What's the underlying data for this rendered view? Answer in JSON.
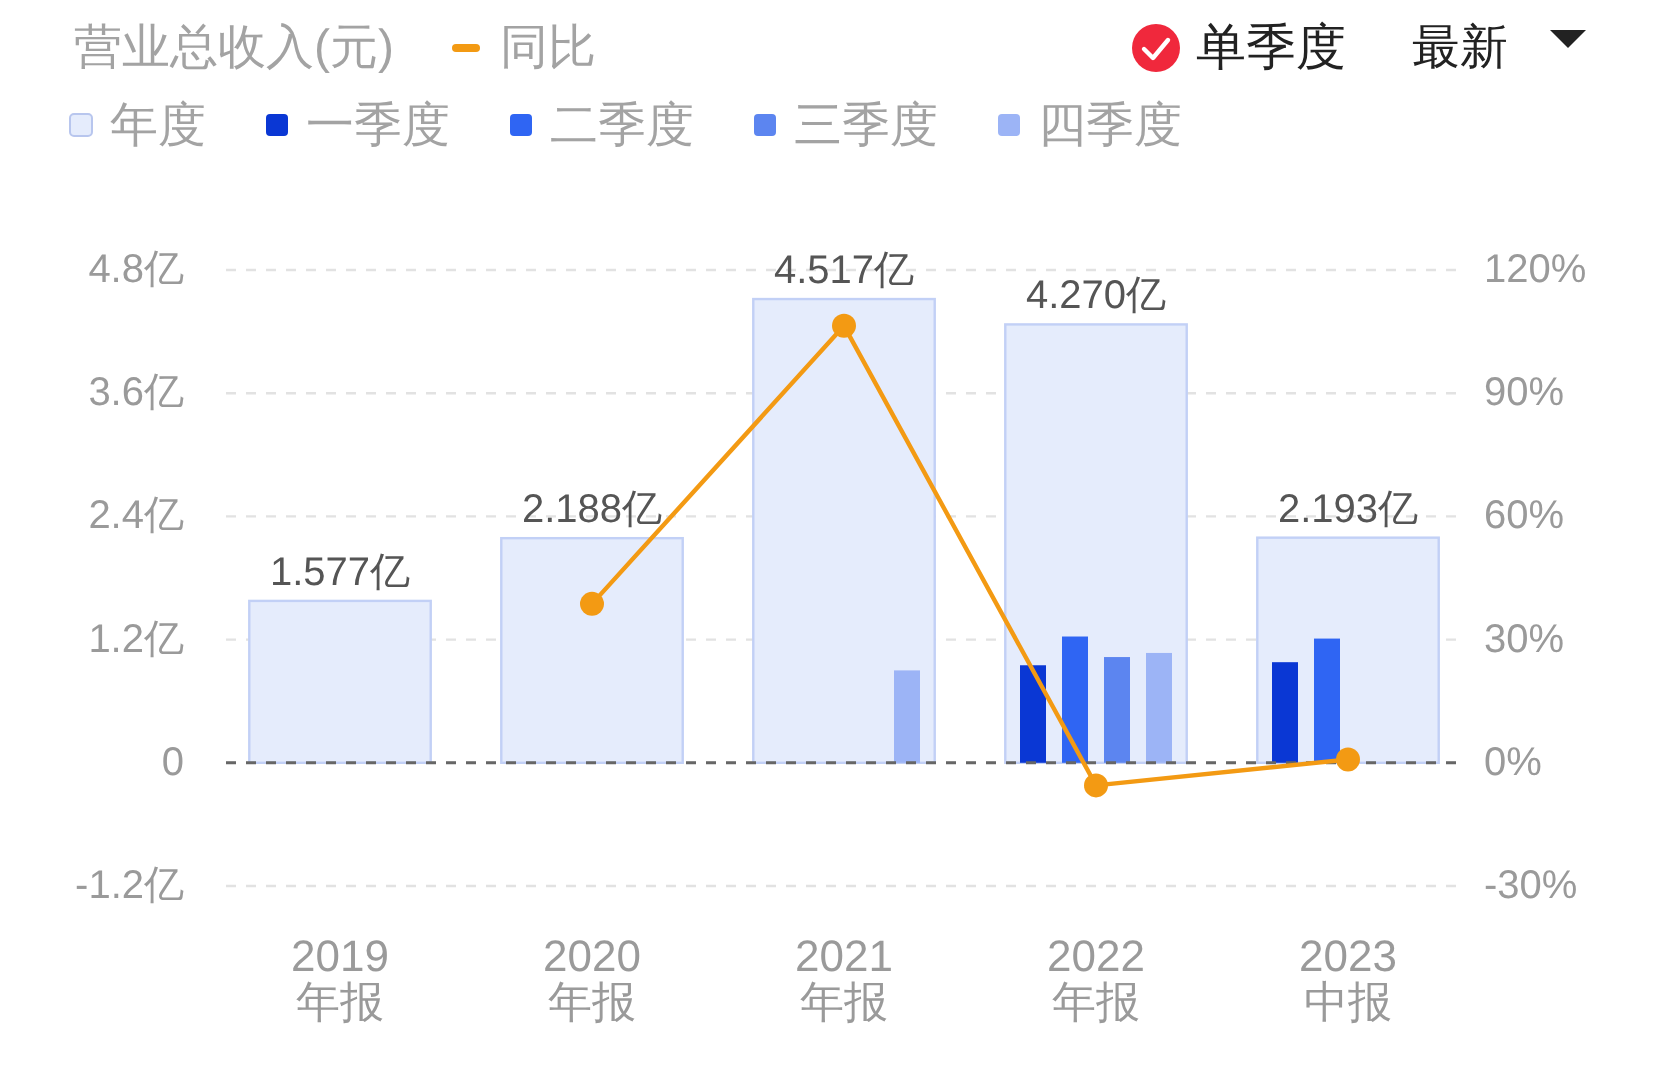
{
  "chart_data": {
    "type": "bar",
    "title": "营业总收入(元)",
    "categories": [
      "2019\n年报",
      "2020\n年报",
      "2021\n年报",
      "2022\n年报",
      "2023\n中报"
    ],
    "series": [
      {
        "name": "年度",
        "color": "#e5ecfc",
        "values": [
          1.577,
          2.188,
          4.517,
          4.27,
          2.193
        ],
        "value_labels": [
          "1.577亿",
          "2.188亿",
          "4.517亿",
          "4.270亿",
          "2.193亿"
        ]
      },
      {
        "name": "一季度",
        "color": "#0a37d4",
        "values": [
          null,
          null,
          null,
          0.95,
          0.98
        ]
      },
      {
        "name": "二季度",
        "color": "#2f65f3",
        "values": [
          null,
          null,
          null,
          1.23,
          1.21
        ]
      },
      {
        "name": "三季度",
        "color": "#5c85f0",
        "values": [
          null,
          null,
          null,
          1.03,
          null
        ]
      },
      {
        "name": "四季度",
        "color": "#9cb4f6",
        "values": [
          null,
          null,
          0.9,
          1.07,
          null
        ]
      },
      {
        "name": "同比",
        "type": "line",
        "axis": "y2",
        "color": "#f39a13",
        "values": [
          null,
          38.7,
          106.4,
          -5.5,
          0.8
        ]
      }
    ],
    "ylim": [
      -1.2,
      4.8
    ],
    "yticks": [
      {
        "value": -1.2,
        "label": "-1.2亿"
      },
      0,
      {
        "value": 1.2,
        "label": "1.2亿"
      },
      {
        "value": 2.4,
        "label": "2.4亿"
      },
      {
        "value": 3.6,
        "label": "3.6亿"
      },
      {
        "value": 4.8,
        "label": "4.8亿"
      }
    ],
    "y2lim": [
      -30,
      120
    ],
    "y2ticks": [
      {
        "value": -30,
        "label": "-30%"
      },
      {
        "value": 0,
        "label": "0%"
      },
      {
        "value": 30,
        "label": "30%"
      },
      {
        "value": 60,
        "label": "60%"
      },
      {
        "value": 90,
        "label": "90%"
      },
      {
        "value": 120,
        "label": "120%"
      }
    ],
    "ref_lines": [
      {
        "axis": "y",
        "value": 0,
        "color": "#666666",
        "line_style": "dashed"
      }
    ],
    "grid": "y",
    "legend": "top left",
    "marker": "circle",
    "annotations": [
      "单季度",
      "最新"
    ]
  }
}
